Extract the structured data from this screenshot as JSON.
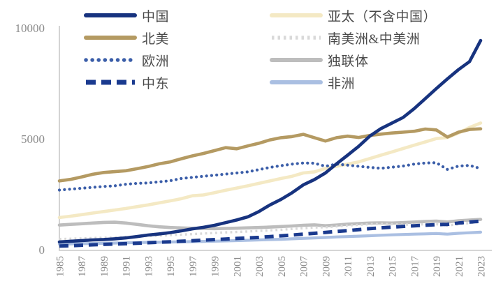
{
  "chart_data": {
    "type": "line",
    "title": "",
    "xlabel": "",
    "ylabel": "",
    "grid": false,
    "legend_position": "top",
    "ylim": [
      0,
      10000
    ],
    "y_tick_labels": [
      "10000",
      "5000",
      "0"
    ],
    "y_tick_values": [
      10000,
      5000,
      0
    ],
    "x_start_year": 1985,
    "x_end_year": 2023,
    "x_tick_labels": [
      "1985",
      "1987",
      "1989",
      "1991",
      "1993",
      "1995",
      "1997",
      "1999",
      "2001",
      "2003",
      "2005",
      "2007",
      "2009",
      "2011",
      "2013",
      "2015",
      "2017",
      "2019",
      "2021",
      "2023"
    ],
    "axis_color": "#c9c9c9",
    "tick_label_color": "#8a8a8a",
    "draw_order": [
      4,
      1,
      6,
      7,
      5,
      3,
      2,
      0
    ],
    "series": [
      {
        "name": "中国",
        "key": "china",
        "color": "#17337f",
        "style": "solid",
        "width": 4.6,
        "values": [
          350,
          380,
          410,
          440,
          460,
          490,
          530,
          590,
          660,
          710,
          770,
          850,
          940,
          1010,
          1100,
          1220,
          1340,
          1480,
          1720,
          2020,
          2270,
          2570,
          2920,
          3160,
          3460,
          3870,
          4260,
          4660,
          5120,
          5460,
          5710,
          5960,
          6360,
          6810,
          7260,
          7700,
          8120,
          8480,
          9430
        ]
      },
      {
        "name": "北美",
        "key": "north-america",
        "color": "#b49a62",
        "style": "solid",
        "width": 4.6,
        "values": [
          3100,
          3170,
          3280,
          3400,
          3480,
          3520,
          3560,
          3650,
          3750,
          3870,
          3960,
          4100,
          4230,
          4340,
          4470,
          4600,
          4550,
          4680,
          4800,
          4950,
          5050,
          5100,
          5200,
          5050,
          4900,
          5050,
          5120,
          5060,
          5150,
          5210,
          5260,
          5300,
          5340,
          5440,
          5400,
          5080,
          5300,
          5420,
          5450
        ]
      },
      {
        "name": "欧洲",
        "key": "europe",
        "color": "#3b5ea9",
        "style": "dot",
        "width": 4.2,
        "values": [
          2690,
          2730,
          2770,
          2810,
          2850,
          2880,
          2950,
          2990,
          3010,
          3060,
          3110,
          3210,
          3260,
          3310,
          3360,
          3410,
          3460,
          3510,
          3610,
          3710,
          3790,
          3860,
          3910,
          3900,
          3760,
          3860,
          3810,
          3760,
          3710,
          3670,
          3720,
          3770,
          3860,
          3910,
          3920,
          3620,
          3770,
          3800,
          3660
        ]
      },
      {
        "name": "中东",
        "key": "middle-east",
        "color": "#1a3a8f",
        "style": "dash",
        "width": 5,
        "values": [
          165,
          180,
          200,
          220,
          240,
          255,
          270,
          290,
          315,
          335,
          355,
          380,
          405,
          430,
          455,
          480,
          505,
          530,
          555,
          590,
          625,
          660,
          700,
          740,
          780,
          820,
          860,
          905,
          950,
          985,
          1020,
          1050,
          1080,
          1105,
          1130,
          1140,
          1200,
          1245,
          1285
        ]
      },
      {
        "name": "亚太（不含中国）",
        "key": "asia-pacific-ex-china",
        "color": "#f4e9c4",
        "style": "solid",
        "width": 4.6,
        "values": [
          1450,
          1510,
          1580,
          1650,
          1720,
          1790,
          1860,
          1940,
          2020,
          2110,
          2200,
          2300,
          2430,
          2470,
          2570,
          2680,
          2780,
          2880,
          2990,
          3100,
          3210,
          3310,
          3460,
          3510,
          3660,
          3760,
          3860,
          3960,
          4110,
          4260,
          4410,
          4560,
          4710,
          4860,
          5010,
          5060,
          5260,
          5510,
          5710
        ]
      },
      {
        "name": "南美洲&中美洲",
        "key": "south-central-america",
        "color": "#d9d9d9",
        "style": "sq-dot",
        "width": 3.4,
        "values": [
          480,
          495,
          510,
          525,
          540,
          555,
          575,
          595,
          615,
          635,
          655,
          680,
          705,
          730,
          755,
          780,
          800,
          820,
          845,
          870,
          900,
          935,
          970,
          1000,
          1010,
          1050,
          1090,
          1120,
          1150,
          1160,
          1150,
          1130,
          1140,
          1140,
          1150,
          1090,
          1150,
          1200,
          1250
        ]
      },
      {
        "name": "独联体",
        "key": "cis",
        "color": "#bdbdbd",
        "style": "solid",
        "width": 4.6,
        "values": [
          1110,
          1140,
          1170,
          1200,
          1230,
          1240,
          1200,
          1140,
          1080,
          1030,
          1000,
          980,
          965,
          955,
          950,
          960,
          970,
          985,
          1000,
          1020,
          1045,
          1070,
          1100,
          1120,
          1080,
          1110,
          1150,
          1180,
          1200,
          1210,
          1200,
          1220,
          1245,
          1270,
          1290,
          1250,
          1305,
          1335,
          1365
        ]
      },
      {
        "name": "非洲",
        "key": "africa",
        "color": "#aabfe2",
        "style": "solid",
        "width": 4.2,
        "values": [
          250,
          260,
          270,
          280,
          290,
          300,
          310,
          320,
          330,
          335,
          345,
          355,
          365,
          375,
          385,
          395,
          410,
          425,
          440,
          455,
          470,
          490,
          510,
          530,
          550,
          575,
          590,
          610,
          630,
          650,
          670,
          685,
          700,
          715,
          730,
          700,
          740,
          765,
          790
        ]
      }
    ]
  }
}
